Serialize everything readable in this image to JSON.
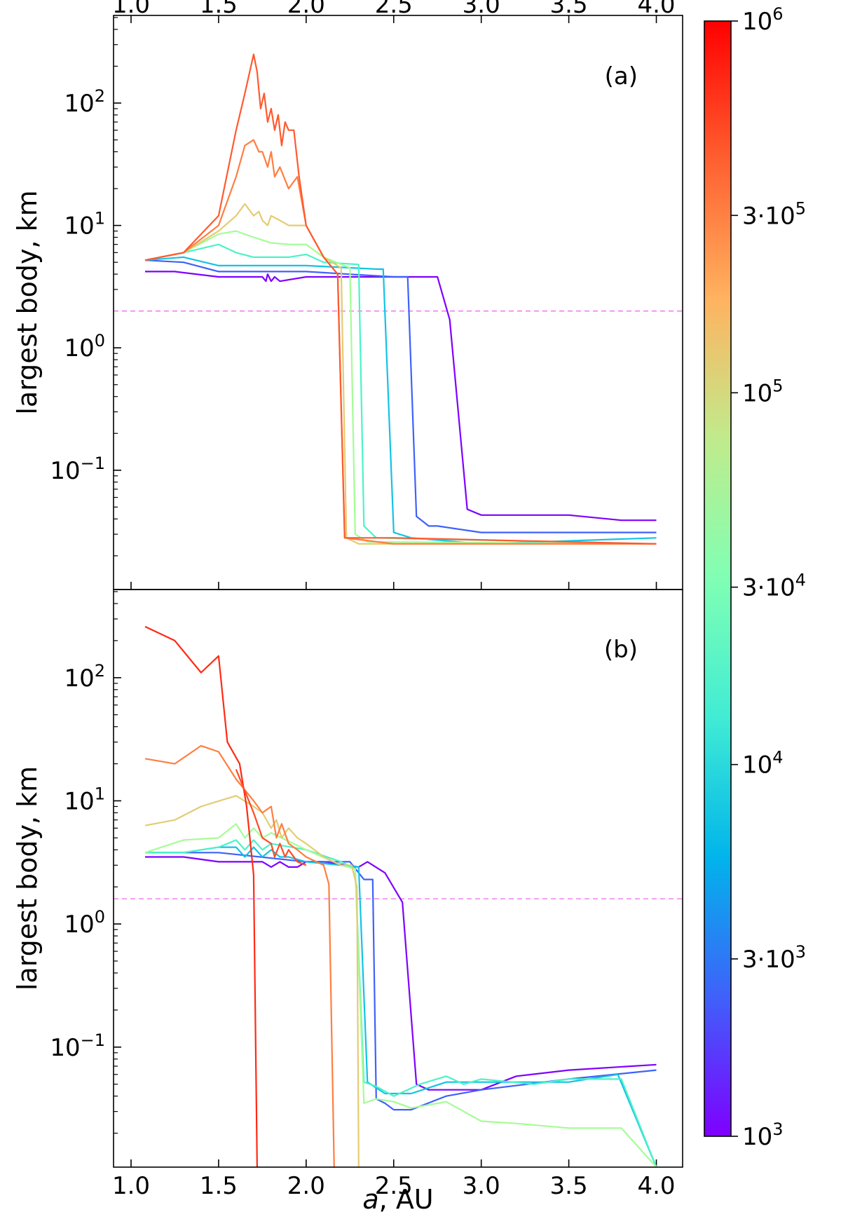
{
  "chart_data": {
    "type": "line",
    "xlabel": "a, AU",
    "ylabel": "largest body, km",
    "xlim": [
      0.9,
      4.15
    ],
    "ylim": [
      0.0106,
      520
    ],
    "yscale": "log",
    "x_ticks": [
      1.0,
      1.5,
      2.0,
      2.5,
      3.0,
      3.5,
      4.0
    ],
    "x_tick_labels": [
      "1.0",
      "1.5",
      "2.0",
      "2.5",
      "3.0",
      "3.5",
      "4.0"
    ],
    "y_ticks": [
      {
        "value": 100,
        "base": "10",
        "exp": "2"
      },
      {
        "value": 10,
        "base": "10",
        "exp": "1"
      },
      {
        "value": 1,
        "base": "10",
        "exp": "0"
      },
      {
        "value": 0.1,
        "base": "10",
        "exp": "−1"
      }
    ],
    "colorbar": {
      "scale": "log",
      "range": [
        1000,
        1000000
      ],
      "colormap": "rainbow",
      "ticks": [
        {
          "value": 1000000,
          "base": "10",
          "exp": "6",
          "prefix": ""
        },
        {
          "value": 300000,
          "base": "10",
          "exp": "5",
          "prefix": "3·"
        },
        {
          "value": 100000,
          "base": "10",
          "exp": "5",
          "prefix": ""
        },
        {
          "value": 30000,
          "base": "10",
          "exp": "4",
          "prefix": "3·"
        },
        {
          "value": 10000,
          "base": "10",
          "exp": "4",
          "prefix": ""
        },
        {
          "value": 3000,
          "base": "10",
          "exp": "3",
          "prefix": "3·"
        },
        {
          "value": 1000,
          "base": "10",
          "exp": "3",
          "prefix": ""
        }
      ]
    },
    "panels": [
      {
        "label": "(a)",
        "threshold": 2.0,
        "threshold_color": "#ee82ee",
        "series": [
          {
            "color": "#7f00ff",
            "x": [
              1.08,
              1.25,
              1.5,
              1.75,
              1.77,
              1.78,
              1.8,
              1.82,
              1.85,
              2.0,
              2.2,
              2.5,
              2.75,
              2.82,
              2.92,
              3.0,
              3.5,
              3.8,
              4.0
            ],
            "y": [
              4.2,
              4.2,
              3.8,
              3.8,
              3.5,
              4.0,
              3.5,
              3.8,
              3.5,
              3.8,
              3.8,
              3.8,
              3.8,
              1.7,
              0.048,
              0.043,
              0.043,
              0.039,
              0.039
            ]
          },
          {
            "color": "#3f61fa",
            "x": [
              1.08,
              1.3,
              1.5,
              1.75,
              2.0,
              2.5,
              2.58,
              2.63,
              2.7,
              2.75,
              3.0,
              4.0
            ],
            "y": [
              5.2,
              5.0,
              4.2,
              4.2,
              4.2,
              3.8,
              3.8,
              0.042,
              0.035,
              0.035,
              0.031,
              0.031
            ]
          },
          {
            "color": "#14c2e5",
            "x": [
              1.08,
              1.3,
              1.5,
              1.8,
              2.0,
              2.4,
              2.44,
              2.5,
              2.6,
              3.0,
              4.0
            ],
            "y": [
              5.2,
              5.5,
              4.7,
              4.7,
              4.7,
              4.4,
              4.4,
              0.031,
              0.028,
              0.025,
              0.028
            ]
          },
          {
            "color": "#4bf3c6",
            "x": [
              1.08,
              1.3,
              1.5,
              1.6,
              1.7,
              1.8,
              1.9,
              2.0,
              2.1,
              2.3,
              2.33,
              2.4,
              4.0
            ],
            "y": [
              5.2,
              6.0,
              7.0,
              6.0,
              5.5,
              5.5,
              5.5,
              5.8,
              5.0,
              4.8,
              0.035,
              0.028,
              0.025
            ]
          },
          {
            "color": "#a5fc96",
            "x": [
              1.08,
              1.3,
              1.5,
              1.6,
              1.7,
              1.8,
              1.9,
              2.0,
              2.1,
              2.25,
              2.28,
              2.35,
              4.0
            ],
            "y": [
              5.2,
              6.0,
              8.5,
              9.0,
              8.0,
              7.2,
              7.0,
              7.0,
              5.5,
              4.5,
              0.03,
              0.026,
              0.025
            ]
          },
          {
            "color": "#e3cc72",
            "x": [
              1.08,
              1.3,
              1.5,
              1.6,
              1.65,
              1.7,
              1.73,
              1.75,
              1.78,
              1.8,
              1.85,
              1.9,
              2.0,
              2.1,
              2.2,
              2.23,
              2.3,
              4.0
            ],
            "y": [
              5.2,
              6.0,
              9.0,
              12.0,
              15.0,
              12.0,
              13.0,
              11.0,
              10.0,
              12.0,
              11.0,
              10.0,
              10.0,
              5.5,
              4.5,
              0.028,
              0.025,
              0.025
            ]
          },
          {
            "color": "#ff7e41",
            "x": [
              1.08,
              1.3,
              1.5,
              1.6,
              1.65,
              1.7,
              1.73,
              1.75,
              1.78,
              1.8,
              1.82,
              1.85,
              1.9,
              1.95,
              2.0,
              2.1,
              2.18,
              2.22,
              2.5,
              4.0
            ],
            "y": [
              5.2,
              6.0,
              10.0,
              25.0,
              45.0,
              50.0,
              40.0,
              40.0,
              30.0,
              40.0,
              25.0,
              30.0,
              20.0,
              25.0,
              10.0,
              5.5,
              4.0,
              0.028,
              0.025,
              0.025
            ]
          },
          {
            "color": "#ff5a2e",
            "x": [
              1.08,
              1.3,
              1.5,
              1.6,
              1.65,
              1.7,
              1.72,
              1.74,
              1.76,
              1.78,
              1.8,
              1.82,
              1.84,
              1.86,
              1.88,
              1.9,
              1.93,
              1.96,
              2.0,
              2.1,
              2.18,
              2.22,
              2.5,
              4.0
            ],
            "y": [
              5.2,
              6.0,
              12.0,
              60.0,
              120.0,
              250.0,
              180.0,
              90.0,
              120.0,
              70.0,
              90.0,
              60.0,
              80.0,
              45.0,
              70.0,
              60.0,
              60.0,
              25.0,
              10.0,
              5.5,
              4.0,
              0.028,
              0.028,
              0.025
            ]
          }
        ]
      },
      {
        "label": "(b)",
        "threshold": 1.6,
        "threshold_color": "#ee82ee",
        "series": [
          {
            "color": "#7f00ff",
            "x": [
              1.08,
              1.3,
              1.5,
              1.75,
              1.8,
              1.85,
              1.9,
              1.95,
              2.0,
              2.1,
              2.3,
              2.35,
              2.45,
              2.55,
              2.63,
              2.7,
              3.0,
              3.2,
              3.5,
              4.0
            ],
            "y": [
              3.5,
              3.5,
              3.2,
              3.2,
              2.9,
              3.2,
              2.9,
              2.9,
              3.2,
              3.2,
              2.9,
              3.2,
              2.6,
              1.5,
              0.05,
              0.045,
              0.045,
              0.058,
              0.065,
              0.072
            ]
          },
          {
            "color": "#3f61fa",
            "x": [
              1.08,
              1.3,
              1.5,
              2.0,
              2.25,
              2.33,
              2.38,
              2.4,
              2.45,
              2.5,
              2.6,
              2.8,
              3.0,
              3.5,
              4.0
            ],
            "y": [
              3.8,
              3.8,
              3.8,
              3.2,
              3.2,
              2.3,
              2.3,
              0.038,
              0.035,
              0.031,
              0.031,
              0.04,
              0.045,
              0.055,
              0.065
            ]
          },
          {
            "color": "#14c2e5",
            "x": [
              1.08,
              1.3,
              1.5,
              1.6,
              1.65,
              1.7,
              1.75,
              1.8,
              1.85,
              1.9,
              2.0,
              2.2,
              2.3,
              2.35,
              2.45,
              2.6,
              2.8,
              3.0,
              3.5,
              3.78,
              4.0
            ],
            "y": [
              3.8,
              3.8,
              4.2,
              4.2,
              3.5,
              4.2,
              3.5,
              4.0,
              3.5,
              3.5,
              3.2,
              3.0,
              2.9,
              0.052,
              0.042,
              0.042,
              0.052,
              0.052,
              0.052,
              0.06,
              0.0106
            ]
          },
          {
            "color": "#4bf3c6",
            "x": [
              1.08,
              1.3,
              1.5,
              1.6,
              1.65,
              1.7,
              1.75,
              1.8,
              2.0,
              2.2,
              2.28,
              2.33,
              2.4,
              2.5,
              2.65,
              2.8,
              2.9,
              3.0,
              3.3,
              3.5,
              3.8,
              4.0
            ],
            "y": [
              3.8,
              3.8,
              4.2,
              4.8,
              4.0,
              4.8,
              4.0,
              4.5,
              4.0,
              3.2,
              2.8,
              0.052,
              0.048,
              0.04,
              0.05,
              0.058,
              0.05,
              0.055,
              0.05,
              0.055,
              0.055,
              0.0106
            ]
          },
          {
            "color": "#a5fc96",
            "x": [
              1.08,
              1.3,
              1.5,
              1.6,
              1.65,
              1.7,
              1.75,
              1.8,
              2.0,
              2.2,
              2.28,
              2.33,
              2.4,
              2.5,
              2.6,
              2.8,
              3.0,
              3.2,
              3.5,
              3.8,
              4.0
            ],
            "y": [
              3.8,
              4.8,
              5.0,
              6.5,
              5.0,
              6.0,
              5.0,
              5.5,
              4.0,
              3.0,
              2.8,
              0.035,
              0.038,
              0.036,
              0.032,
              0.036,
              0.025,
              0.024,
              0.022,
              0.022,
              0.0106
            ]
          },
          {
            "color": "#e3cc72",
            "x": [
              1.08,
              1.25,
              1.4,
              1.6,
              1.7,
              1.75,
              1.8,
              1.83,
              1.86,
              1.9,
              1.95,
              2.0,
              2.1,
              2.2,
              2.26,
              2.29,
              2.3
            ],
            "y": [
              6.3,
              7.0,
              9.0,
              11.0,
              9.0,
              8.0,
              6.0,
              7.0,
              5.0,
              6.0,
              5.0,
              4.5,
              3.5,
              3.0,
              3.0,
              2.0,
              0.0106
            ]
          },
          {
            "color": "#ff7e41",
            "x": [
              1.08,
              1.25,
              1.4,
              1.5,
              1.6,
              1.7,
              1.75,
              1.8,
              1.83,
              1.86,
              1.9,
              1.95,
              2.0,
              2.1,
              2.13,
              2.16
            ],
            "y": [
              22.0,
              20.0,
              28.0,
              25.0,
              15.0,
              10.0,
              8.0,
              9.0,
              5.0,
              6.5,
              4.5,
              4.0,
              3.5,
              3.0,
              2.1,
              0.0106
            ]
          },
          {
            "color": "#ff2a15",
            "x": [
              1.08,
              1.25,
              1.4,
              1.5,
              1.55,
              1.62,
              1.66,
              1.7,
              1.72
            ],
            "y": [
              260.0,
              200.0,
              110.0,
              150.0,
              30.0,
              20.0,
              9.0,
              2.5,
              0.0106
            ]
          },
          {
            "color": "#ff4a26",
            "x": [
              1.6,
              1.65,
              1.7,
              1.75,
              1.8,
              1.82,
              1.85,
              1.88,
              1.9,
              1.95,
              2.0
            ],
            "y": [
              18.0,
              12.0,
              8.0,
              5.0,
              4.5,
              3.5,
              4.5,
              3.5,
              4.0,
              3.2,
              3.0
            ]
          }
        ]
      }
    ]
  }
}
